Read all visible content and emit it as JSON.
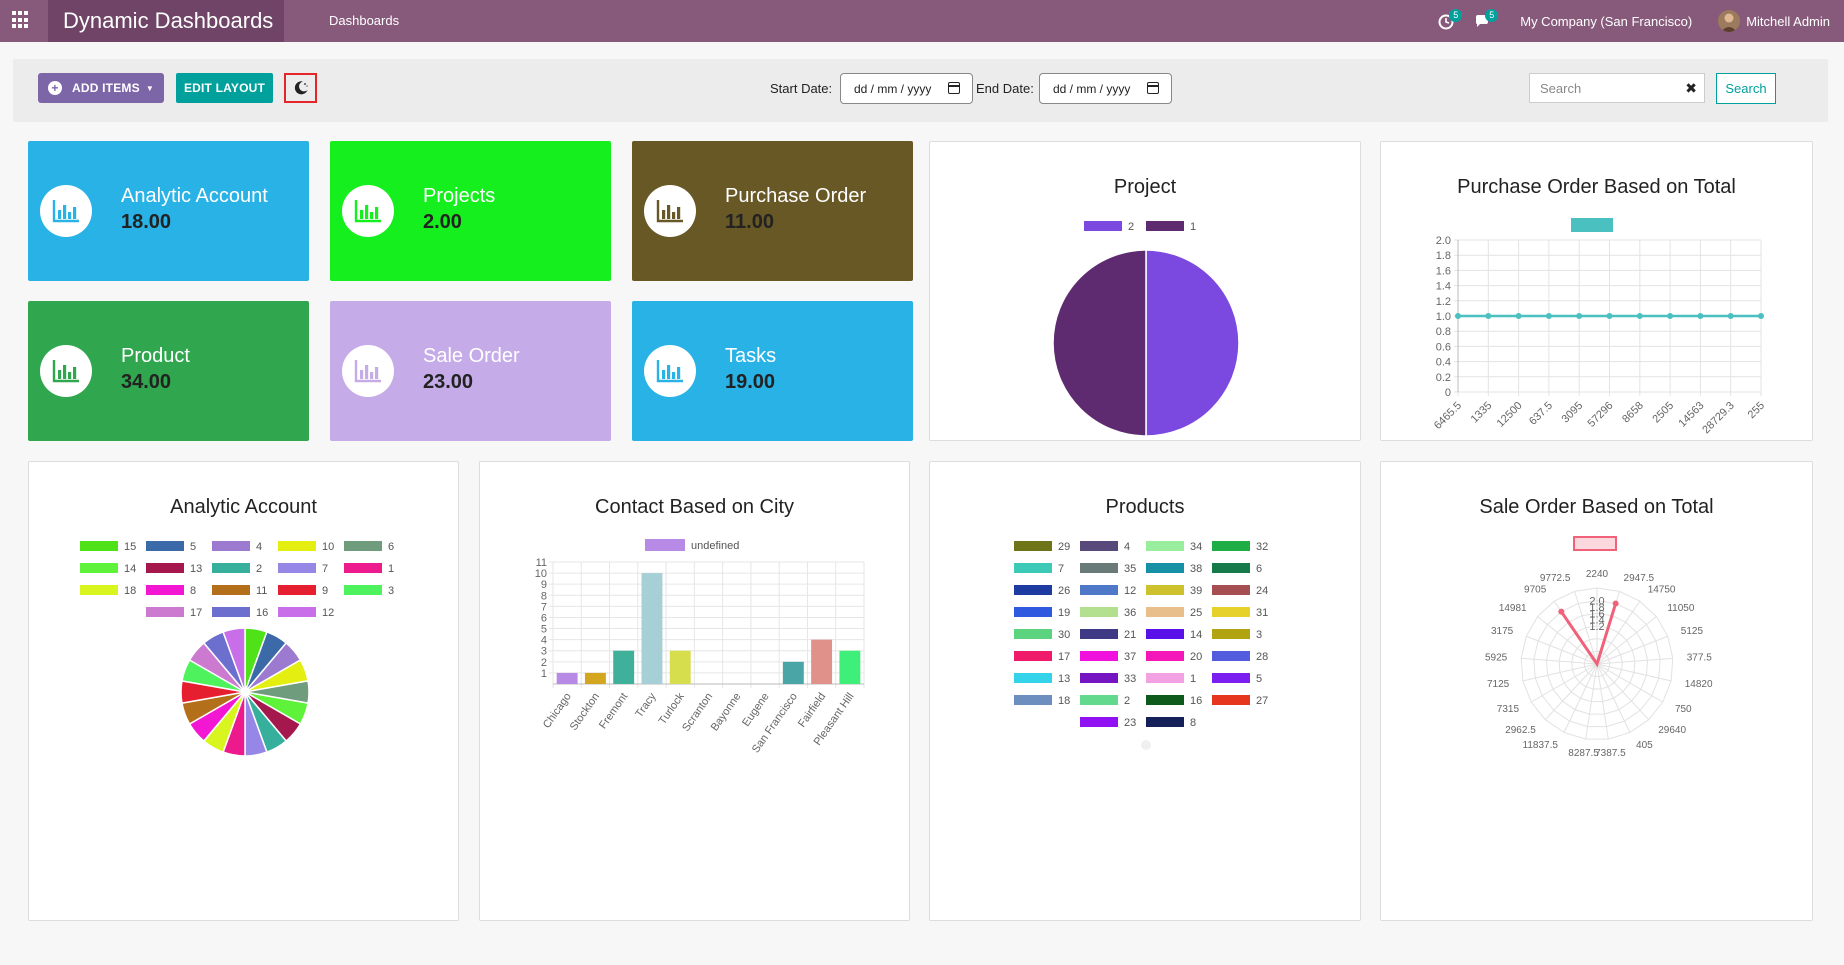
{
  "navbar": {
    "brand": "Dynamic Dashboards",
    "menu_item": "Dashboards",
    "activity_badge": "5",
    "message_badge": "5",
    "company": "My Company (San Francisco)",
    "user": "Mitchell Admin",
    "color": "#875a7b"
  },
  "control": {
    "add_items_label": "ADD ITEMS",
    "edit_layout_label": "EDIT LAYOUT",
    "theme_icon": "moon-icon",
    "start_date_label": "Start Date:",
    "end_date_label": "End Date:",
    "date_placeholder": "dd / mm / yyyy",
    "search_placeholder": "Search",
    "search_button": "Search"
  },
  "tiles": [
    {
      "name": "Analytic Account",
      "value": "18.00",
      "color": "#29b2e6",
      "icon_color": "#29b2e6"
    },
    {
      "name": "Projects",
      "value": "2.00",
      "color": "#14ef1d",
      "icon_color": "#14ef1d"
    },
    {
      "name": "Purchase Order",
      "value": "11.00",
      "color": "#685826",
      "icon_color": "#685826"
    },
    {
      "name": "Product",
      "value": "34.00",
      "color": "#30a74e",
      "icon_color": "#30a74e"
    },
    {
      "name": "Sale Order",
      "value": "23.00",
      "color": "#c5ace8",
      "icon_color": "#c5ace8"
    },
    {
      "name": "Tasks",
      "value": "19.00",
      "color": "#29b2e6",
      "icon_color": "#29b2e6"
    }
  ],
  "cards": {
    "project": "Project",
    "purchase_total": "Purchase Order Based on Total",
    "analytic": "Analytic Account",
    "contact_city": "Contact Based on City",
    "products": "Products",
    "sale_total": "Sale Order Based on Total"
  },
  "chart_data": [
    {
      "type": "pie",
      "title": "Project",
      "legend": [
        "2",
        "1"
      ],
      "values": [
        1,
        1
      ],
      "colors": [
        "#7b49e0",
        "#5e2b70"
      ]
    },
    {
      "type": "line",
      "title": "Purchase Order Based on Total",
      "x": [
        "6465.5",
        "1335",
        "12500",
        "637.5",
        "3095",
        "57296",
        "8658",
        "2505",
        "14563",
        "28729.3",
        "255"
      ],
      "values": [
        1,
        1,
        1,
        1,
        1,
        1,
        1,
        1,
        1,
        1,
        1
      ],
      "ylim": [
        0,
        2.0
      ],
      "yticks": [
        "2.0",
        "1.8",
        "1.6",
        "1.4",
        "1.2",
        "1.0",
        "0.8",
        "0.6",
        "0.4",
        "0.2",
        "0"
      ],
      "color": "#4bc0c0",
      "grid": true
    },
    {
      "type": "pie",
      "title": "Analytic Account",
      "legend": [
        "15",
        "5",
        "4",
        "10",
        "6",
        "14",
        "13",
        "2",
        "7",
        "1",
        "18",
        "8",
        "11",
        "9",
        "3",
        "17",
        "16",
        "12"
      ],
      "values": [
        1,
        1,
        1,
        1,
        1,
        1,
        1,
        1,
        1,
        1,
        1,
        1,
        1,
        1,
        1,
        1,
        1,
        1
      ],
      "colors": [
        "#4fe219",
        "#3c6aa8",
        "#9b7ad0",
        "#e4ee10",
        "#6e9c7c",
        "#5ef23a",
        "#a5184e",
        "#36b09d",
        "#9687e6",
        "#ec1a8c",
        "#d8f520",
        "#f316d2",
        "#b46f1b",
        "#e51f30",
        "#4ef25c",
        "#cb7ad0",
        "#6d6fcf",
        "#c86ee8"
      ]
    },
    {
      "type": "bar",
      "title": "Contact Based on City",
      "categories": [
        "Chicago",
        "Stockton",
        "Fremont",
        "Tracy",
        "Turlock",
        "Scranton",
        "Bayonne",
        "Eugene",
        "San Francisco",
        "Fairfield",
        "Pleasant Hill"
      ],
      "series": [
        {
          "name": "undefined",
          "values": [
            1,
            1,
            3,
            10,
            3,
            0,
            0,
            0,
            2,
            4,
            3
          ]
        }
      ],
      "colors": [
        "#b78ae6",
        "#d4a51e",
        "#3fb09a",
        "#a7cfd6",
        "#d6de4e",
        "#cccccc",
        "#cccccc",
        "#cccccc",
        "#4aa5a6",
        "#e0918a",
        "#3ef07a"
      ],
      "yticks": [
        "11",
        "10",
        "9",
        "8",
        "7",
        "6",
        "5",
        "4",
        "3",
        "2",
        "1"
      ],
      "grid": true
    },
    {
      "type": "pie",
      "title": "Products",
      "legend": [
        "29",
        "4",
        "34",
        "32",
        "7",
        "35",
        "38",
        "6",
        "26",
        "12",
        "39",
        "24",
        "19",
        "36",
        "25",
        "31",
        "30",
        "21",
        "14",
        "3",
        "17",
        "37",
        "20",
        "28",
        "13",
        "33",
        "1",
        "5",
        "18",
        "2",
        "16",
        "27",
        "23",
        "8"
      ],
      "colors": [
        "#6e7418",
        "#574a7a",
        "#98ee9c",
        "#1fae45",
        "#3cc9b8",
        "#6a7a78",
        "#1690a4",
        "#157a4a",
        "#1d3ba0",
        "#4f79c8",
        "#cdc22e",
        "#a54f52",
        "#2f5ae0",
        "#b3e08f",
        "#e8be8b",
        "#e6d12a",
        "#5cd47f",
        "#3f3885",
        "#5a10e8",
        "#b2a410",
        "#ef1a6a",
        "#f012dc",
        "#f418b8",
        "#535cdd",
        "#33d3ea",
        "#7516c2",
        "#f2a2e2",
        "#7a1ff0",
        "#6d8fc0",
        "#63d98e",
        "#0d5a1c",
        "#e6371e",
        "#9012f2",
        "#152058"
      ]
    },
    {
      "type": "radar",
      "title": "Sale Order Based on Total",
      "labels": [
        "2240",
        "2947.5",
        "14750",
        "11050",
        "5125",
        "377.5",
        "14820",
        "750",
        "29640",
        "405",
        "7387.5",
        "8287.5",
        "11837.5",
        "2962.5",
        "7315",
        "7125",
        "5925",
        "3175",
        "14981",
        "9705",
        "9772.5"
      ],
      "values": [
        0,
        2,
        0,
        0,
        0,
        0,
        0,
        0,
        0,
        0,
        0,
        0,
        0,
        0,
        0,
        0,
        0,
        0,
        0,
        2,
        0
      ],
      "rticks": [
        "2.0",
        "1.8",
        "1.6",
        "1.4",
        "1.2"
      ],
      "color": "#f0617a"
    }
  ]
}
